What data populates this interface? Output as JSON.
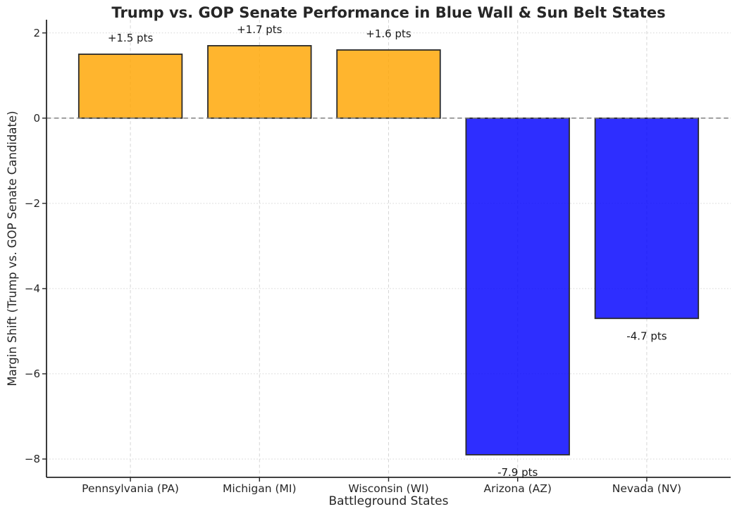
{
  "chart_data": {
    "type": "bar",
    "title": "Trump vs. GOP Senate Performance in Blue Wall & Sun Belt States",
    "xlabel": "Battleground States",
    "ylabel": "Margin Shift (Trump vs. GOP Senate Candidate)",
    "categories": [
      "Pennsylvania (PA)",
      "Michigan (MI)",
      "Wisconsin (WI)",
      "Arizona (AZ)",
      "Nevada (NV)"
    ],
    "values": [
      1.5,
      1.7,
      1.6,
      -7.9,
      -4.7
    ],
    "bar_labels": [
      "+1.5 pts",
      "+1.7 pts",
      "+1.6 pts",
      "-7.9 pts",
      "-4.7 pts"
    ],
    "ytick_values": [
      2,
      0,
      -2,
      -4,
      -6,
      -8
    ],
    "ytick_labels": [
      "2",
      "0",
      "−2",
      "−4",
      "−6",
      "−8"
    ],
    "ylim": [
      -8.43,
      2.31
    ],
    "bar_width_fraction": 0.8,
    "grid": true,
    "zero_line": true,
    "legend": false,
    "colors": {
      "positive": "#FFA500",
      "negative": "#0000FF",
      "bar_fill_opacity": 0.82,
      "bar_edge": "#2a2a2a",
      "zero_line": "#808080",
      "grid": "#d6d6d6",
      "axis": "#262626",
      "text": "#1a1a1a"
    }
  }
}
